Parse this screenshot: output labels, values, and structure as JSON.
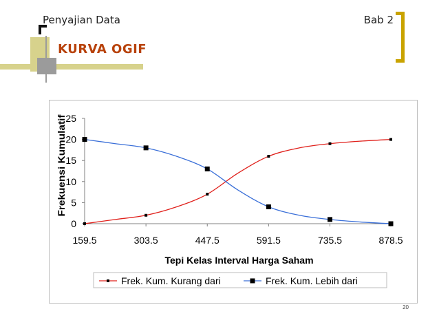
{
  "header": {
    "left": "Penyajian Data",
    "right": "Bab 2"
  },
  "slide": {
    "title": "KURVA OGIF",
    "number": "20"
  },
  "colors": {
    "title": "#b8420b",
    "deco_olive": "#d7d28c",
    "deco_gray": "#9b9b9b",
    "bracket_gold": "#c9a300"
  },
  "chart_data": {
    "type": "line",
    "x": [
      159.5,
      231.5,
      303.5,
      375.5,
      447.5,
      519.5,
      591.5,
      663.5,
      735.5,
      807.5,
      878.5
    ],
    "x_ticks": [
      "159.5",
      "303.5",
      "447.5",
      "591.5",
      "735.5",
      "878.5"
    ],
    "y_ticks": [
      "0",
      "5",
      "10",
      "15",
      "20",
      "25"
    ],
    "ylim": [
      0,
      25
    ],
    "xlim": [
      159.5,
      878.5
    ],
    "xlabel": "Tepi Kelas Interval Harga Saham",
    "ylabel": "Frekuensi Kumulatif",
    "grid": false,
    "legend": "bottom",
    "series": [
      {
        "name": "Frek. Kum. Kurang dari",
        "color": "#e0201b",
        "values": [
          0,
          1,
          2,
          4,
          7,
          12,
          16,
          18,
          19,
          19.6,
          20
        ],
        "marker_indices": [
          0,
          2,
          4,
          6,
          8,
          10
        ],
        "marker": "small-square"
      },
      {
        "name": "Frek. Kum. Lebih dari",
        "color": "#3a6fd8",
        "values": [
          20,
          19,
          18,
          16,
          13,
          8,
          4,
          2,
          1,
          0.4,
          0
        ],
        "marker_indices": [
          0,
          2,
          4,
          6,
          8,
          10
        ],
        "marker": "square"
      }
    ]
  }
}
